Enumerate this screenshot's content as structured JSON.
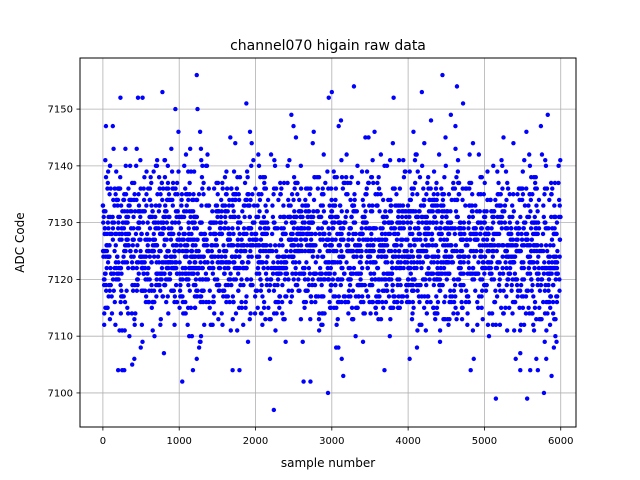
{
  "chart_data": {
    "type": "scatter",
    "title": "channel070 higain raw data",
    "xlabel": "sample number",
    "ylabel": "ADC Code",
    "xlim": [
      -300,
      6200
    ],
    "ylim": [
      7094,
      7159
    ],
    "xticks": [
      0,
      1000,
      2000,
      3000,
      4000,
      5000,
      6000
    ],
    "yticks": [
      7100,
      7110,
      7120,
      7130,
      7140,
      7150
    ],
    "grid": true,
    "marker_color": "#0000ff",
    "n_samples": 6000,
    "typical_range": [
      7104,
      7150
    ],
    "series": [
      {
        "points": [
          [
            1230,
            7156
          ],
          [
            4450,
            7156
          ],
          [
            3290,
            7154
          ],
          [
            4640,
            7154
          ],
          [
            780,
            7153
          ],
          [
            3000,
            7153
          ],
          [
            4180,
            7153
          ],
          [
            2960,
            7152
          ],
          [
            3810,
            7152
          ],
          [
            460,
            7152
          ],
          [
            520,
            7152
          ],
          [
            230,
            7152
          ],
          [
            1880,
            7151
          ],
          [
            4720,
            7151
          ],
          [
            950,
            7150
          ],
          [
            1240,
            7150
          ],
          [
            5830,
            7149
          ],
          [
            4560,
            7149
          ],
          [
            4300,
            7148
          ],
          [
            3120,
            7148
          ],
          [
            40,
            7147
          ],
          [
            2470,
            7149
          ],
          [
            130,
            7147
          ],
          [
            4620,
            7147
          ],
          [
            3090,
            7147
          ],
          [
            3560,
            7146
          ],
          [
            4070,
            7146
          ],
          [
            5550,
            7146
          ],
          [
            5740,
            7147
          ],
          [
            990,
            7146
          ],
          [
            1670,
            7145
          ],
          [
            2530,
            7145
          ],
          [
            3440,
            7145
          ],
          [
            4490,
            7145
          ],
          [
            5250,
            7145
          ],
          [
            1950,
            7144
          ],
          [
            2750,
            7144
          ],
          [
            3800,
            7144
          ],
          [
            4850,
            7144
          ],
          [
            5380,
            7144
          ],
          [
            2240,
            7097
          ],
          [
            2950,
            7100
          ],
          [
            5150,
            7099
          ],
          [
            5560,
            7099
          ],
          [
            5780,
            7100
          ],
          [
            1040,
            7102
          ],
          [
            2630,
            7102
          ],
          [
            2720,
            7102
          ],
          [
            3150,
            7103
          ],
          [
            5880,
            7103
          ],
          [
            1180,
            7104
          ],
          [
            1700,
            7104
          ],
          [
            1790,
            7104
          ],
          [
            3690,
            7104
          ],
          [
            4820,
            7104
          ],
          [
            5470,
            7104
          ],
          [
            5600,
            7104
          ],
          [
            5700,
            7104
          ],
          [
            200,
            7104
          ],
          [
            280,
            7104
          ],
          [
            5410,
            7106
          ],
          [
            5810,
            7106
          ],
          [
            1230,
            7106
          ],
          [
            2190,
            7106
          ],
          [
            3130,
            7106
          ],
          [
            4020,
            7106
          ],
          [
            4860,
            7106
          ],
          [
            5680,
            7106
          ],
          [
            5470,
            7107
          ],
          [
            800,
            7107
          ],
          [
            5930,
            7110
          ],
          [
            5910,
            7108
          ],
          [
            5790,
            7109
          ],
          [
            5860,
            7112
          ],
          [
            5720,
            7113
          ],
          [
            5650,
            7111
          ],
          [
            5590,
            7114
          ],
          [
            5520,
            7112
          ],
          [
            5460,
            7115
          ],
          [
            5390,
            7111
          ],
          [
            5950,
            7116
          ],
          [
            5900,
            7119
          ],
          [
            5840,
            7118
          ],
          [
            5770,
            7116
          ],
          [
            5710,
            7121
          ]
        ]
      }
    ]
  }
}
